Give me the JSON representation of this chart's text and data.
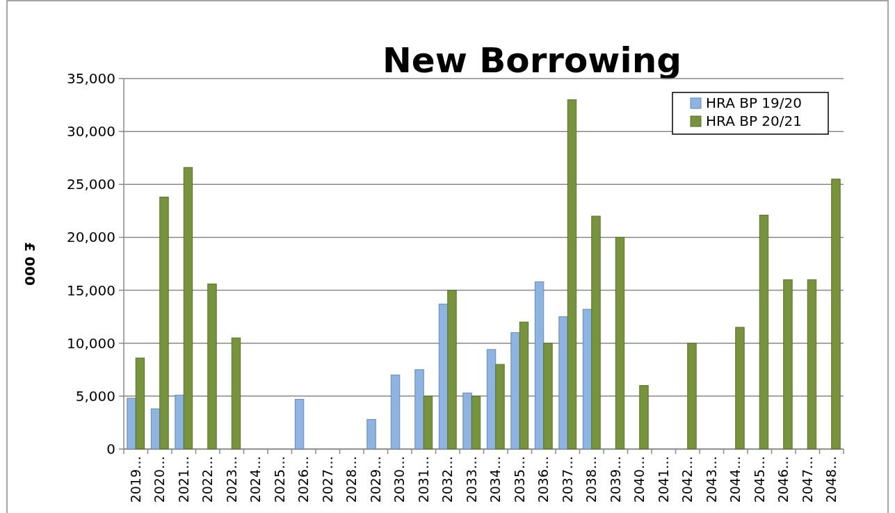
{
  "chart_data": {
    "type": "bar",
    "title": "New Borrowing",
    "ylabel": "£ 000",
    "categories": [
      "2019…",
      "2020…",
      "2021…",
      "2022…",
      "2023…",
      "2024…",
      "2025…",
      "2026…",
      "2027…",
      "2028…",
      "2029…",
      "2030…",
      "2031…",
      "2032…",
      "2033…",
      "2034…",
      "2035…",
      "2036…",
      "2037…",
      "2038…",
      "2039…",
      "2040…",
      "2041…",
      "2042…",
      "2043…",
      "2044…",
      "2045…",
      "2046…",
      "2047…",
      "2048…"
    ],
    "series": [
      {
        "name": "HRA BP 19/20",
        "color": "#8db4e2",
        "values": [
          4800,
          3800,
          5100,
          null,
          null,
          null,
          null,
          4700,
          null,
          null,
          2800,
          7000,
          7500,
          13700,
          5300,
          9400,
          11000,
          15800,
          12500,
          13200,
          null,
          null,
          null,
          null,
          null,
          null,
          null,
          null,
          null,
          null
        ]
      },
      {
        "name": "HRA BP 20/21",
        "color": "#77933c",
        "values": [
          8600,
          23800,
          26600,
          15600,
          10500,
          null,
          null,
          null,
          null,
          null,
          null,
          null,
          5000,
          15000,
          5000,
          8000,
          12000,
          10000,
          33000,
          22000,
          20000,
          6000,
          null,
          10000,
          null,
          11500,
          22100,
          16000,
          16000,
          25500
        ]
      }
    ],
    "ylim": [
      0,
      35000
    ],
    "yticks": [
      {
        "value": 0,
        "label": "0"
      },
      {
        "value": 5000,
        "label": "5,000"
      },
      {
        "value": 10000,
        "label": "10,000"
      },
      {
        "value": 15000,
        "label": "15,000"
      },
      {
        "value": 20000,
        "label": "20,000"
      },
      {
        "value": 25000,
        "label": "25,000"
      },
      {
        "value": 30000,
        "label": "30,000"
      },
      {
        "value": 35000,
        "label": "35,000"
      }
    ],
    "grid": "y",
    "legend": "top right"
  }
}
